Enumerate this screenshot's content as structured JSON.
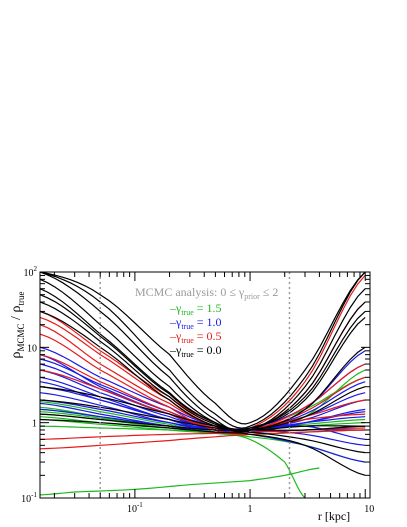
{
  "chart_data": {
    "type": "line",
    "xscale": "log",
    "yscale": "log",
    "xlim": [
      0.015,
      11
    ],
    "ylim": [
      0.1,
      100
    ],
    "x_ticks": [
      {
        "value": 0.1,
        "base": "10",
        "exp": "-1"
      },
      {
        "value": 1,
        "base": "1",
        "exp": ""
      },
      {
        "value": 10,
        "base": "10",
        "exp": ""
      }
    ],
    "y_ticks": [
      {
        "value": 0.1,
        "base": "10",
        "exp": "-1"
      },
      {
        "value": 1,
        "base": "1",
        "exp": ""
      },
      {
        "value": 10,
        "base": "10",
        "exp": ""
      },
      {
        "value": 100,
        "base": "10",
        "exp": "2"
      }
    ],
    "xlabel": "r  [kpc]",
    "ylabel": {
      "prefix": "ρ",
      "sub1": "MCMC",
      "mid": " / ρ",
      "sub2": "true"
    },
    "annotation": {
      "text": "MCMC analysis: 0 ≤ γ",
      "sub": "prior",
      "tail": " ≤ 2"
    },
    "vlines": [
      0.05,
      2.2
    ],
    "legend": [
      {
        "label": "γ",
        "sub": "true",
        "value": " = 1.5",
        "color": "#1fb81f"
      },
      {
        "label": "γ",
        "sub": "true",
        "value": " = 1.0",
        "color": "#1a1ae6"
      },
      {
        "label": "γ",
        "sub": "true",
        "value": " = 0.5",
        "color": "#e61a1a"
      },
      {
        "label": "γ",
        "sub": "true",
        "value": " = 0.0",
        "color": "#000000"
      }
    ],
    "series": [
      {
        "gamma": 1.5,
        "color": "#1fb81f",
        "curves": [
          {
            "x": [
              0.015,
              0.05,
              0.2,
              0.5,
              1,
              3,
              10
            ],
            "y": [
              1.6,
              1.2,
              0.9,
              0.8,
              0.8,
              0.9,
              1.0
            ]
          },
          {
            "x": [
              0.015,
              0.05,
              0.2,
              0.5,
              1,
              3,
              10
            ],
            "y": [
              1.3,
              1.1,
              0.85,
              0.75,
              0.75,
              0.8,
              0.9
            ]
          },
          {
            "x": [
              0.015,
              0.05,
              0.2,
              0.5,
              1,
              3,
              10
            ],
            "y": [
              1.9,
              1.4,
              0.95,
              0.75,
              0.7,
              0.75,
              0.8
            ]
          },
          {
            "x": [
              0.015,
              0.05,
              0.2,
              0.5,
              1,
              3,
              10
            ],
            "y": [
              0.9,
              0.85,
              0.8,
              0.75,
              0.8,
              0.95,
              1.1
            ]
          },
          {
            "x": [
              0.015,
              0.05,
              0.2,
              0.5,
              1,
              3,
              10
            ],
            "y": [
              1.2,
              1.0,
              0.85,
              0.8,
              0.8,
              1.2,
              5.0
            ]
          },
          {
            "x": [
              0.015,
              0.05,
              0.2,
              0.5,
              1,
              3,
              10
            ],
            "y": [
              1.1,
              0.95,
              0.8,
              0.72,
              0.65,
              0.5,
              0.3
            ]
          },
          {
            "x": [
              0.015,
              0.03,
              0.1,
              0.3,
              1,
              2,
              4
            ],
            "y": [
              0.11,
              0.12,
              0.13,
              0.15,
              0.17,
              0.2,
              0.25
            ]
          },
          {
            "x": [
              0.015,
              0.05,
              0.2,
              0.5,
              1,
              2,
              3
            ],
            "y": [
              1.5,
              1.2,
              0.9,
              0.75,
              0.6,
              0.3,
              0.1
            ]
          },
          {
            "x": [
              0.015,
              0.05,
              0.2,
              0.5,
              1,
              3,
              10
            ],
            "y": [
              1.4,
              1.15,
              0.9,
              0.8,
              0.85,
              1.5,
              4.0
            ]
          }
        ]
      },
      {
        "gamma": 1.0,
        "color": "#1a1ae6",
        "curves": [
          {
            "x": [
              0.015,
              0.05,
              0.2,
              0.5,
              1,
              3,
              10
            ],
            "y": [
              8,
              3,
              1.3,
              0.8,
              0.75,
              1.0,
              1.4
            ]
          },
          {
            "x": [
              0.015,
              0.05,
              0.2,
              0.5,
              1,
              3,
              10
            ],
            "y": [
              5,
              2.5,
              1.2,
              0.85,
              0.8,
              1.1,
              2.0
            ]
          },
          {
            "x": [
              0.015,
              0.05,
              0.2,
              0.5,
              1,
              3,
              10
            ],
            "y": [
              3,
              2.0,
              1.1,
              0.8,
              0.8,
              1.3,
              3.5
            ]
          },
          {
            "x": [
              0.015,
              0.05,
              0.2,
              0.5,
              1,
              3,
              10
            ],
            "y": [
              2.5,
              1.7,
              1.0,
              0.8,
              0.8,
              1.0,
              1.2
            ]
          },
          {
            "x": [
              0.015,
              0.05,
              0.2,
              0.5,
              1,
              3,
              10
            ],
            "y": [
              6,
              2.8,
              1.3,
              0.9,
              0.85,
              1.6,
              6.0
            ]
          },
          {
            "x": [
              0.015,
              0.05,
              0.2,
              0.5,
              1,
              3,
              10
            ],
            "y": [
              4,
              2.2,
              1.1,
              0.8,
              0.75,
              0.8,
              0.8
            ]
          },
          {
            "x": [
              0.015,
              0.05,
              0.2,
              0.5,
              1,
              3,
              10
            ],
            "y": [
              2,
              1.5,
              1.0,
              0.85,
              0.85,
              1.2,
              2.5
            ]
          },
          {
            "x": [
              0.015,
              0.05,
              0.2,
              0.5,
              1,
              3,
              10
            ],
            "y": [
              1.5,
              1.2,
              0.9,
              0.8,
              0.8,
              0.7,
              0.5
            ]
          },
          {
            "x": [
              0.015,
              0.05,
              0.2,
              0.5,
              1,
              3,
              10
            ],
            "y": [
              10,
              4,
              1.6,
              0.9,
              0.8,
              1.5,
              9.0
            ]
          },
          {
            "x": [
              0.015,
              0.05,
              0.2,
              0.5,
              1,
              3,
              10
            ],
            "y": [
              3.5,
              2.0,
              1.1,
              0.8,
              0.7,
              0.5,
              0.3
            ]
          },
          {
            "x": [
              0.015,
              0.05,
              0.2,
              0.5,
              1,
              3,
              10
            ],
            "y": [
              7,
              3.2,
              1.4,
              0.9,
              0.8,
              0.9,
              0.6
            ]
          },
          {
            "x": [
              0.015,
              0.05,
              0.2,
              0.5,
              1,
              3,
              10
            ],
            "y": [
              1.8,
              1.3,
              0.9,
              0.75,
              0.75,
              1.0,
              1.5
            ]
          }
        ]
      },
      {
        "gamma": 0.5,
        "color": "#e61a1a",
        "curves": [
          {
            "x": [
              0.015,
              0.05,
              0.2,
              0.5,
              1,
              3,
              10
            ],
            "y": [
              20,
              6,
              1.8,
              0.9,
              0.8,
              1.2,
              2.0
            ]
          },
          {
            "x": [
              0.015,
              0.05,
              0.2,
              0.5,
              1,
              3,
              10
            ],
            "y": [
              15,
              5,
              1.6,
              0.8,
              0.8,
              2.5,
              40
            ]
          },
          {
            "x": [
              0.015,
              0.05,
              0.2,
              0.5,
              1,
              3,
              10
            ],
            "y": [
              8,
              3.5,
              1.4,
              0.85,
              0.8,
              1.1,
              1.3
            ]
          },
          {
            "x": [
              0.015,
              0.05,
              0.2,
              0.5,
              1,
              3,
              10
            ],
            "y": [
              0.6,
              0.65,
              0.7,
              0.72,
              0.75,
              0.8,
              0.85
            ]
          },
          {
            "x": [
              0.015,
              0.05,
              0.2,
              0.5,
              1,
              3,
              10
            ],
            "y": [
              0.45,
              0.5,
              0.58,
              0.65,
              0.7,
              0.75,
              0.8
            ]
          },
          {
            "x": [
              0.015,
              0.05,
              0.2,
              0.5,
              1,
              3,
              10
            ],
            "y": [
              30,
              9,
              2.2,
              1.0,
              0.85,
              3.5,
              90
            ]
          },
          {
            "x": [
              0.015,
              0.05,
              0.2,
              0.5,
              1,
              3,
              10
            ],
            "y": [
              5,
              2.8,
              1.3,
              0.85,
              0.8,
              1.4,
              4.0
            ]
          },
          {
            "x": [
              0.015,
              0.05,
              0.2,
              0.5,
              1,
              3,
              10
            ],
            "y": [
              25,
              8,
              2.0,
              0.9,
              0.8,
              1.6,
              6.0
            ]
          }
        ]
      },
      {
        "gamma": 0.0,
        "color": "#000000",
        "curves": [
          {
            "x": [
              0.015,
              0.05,
              0.2,
              0.5,
              1,
              3,
              10
            ],
            "y": [
              100,
              30,
              4,
              1.1,
              0.8,
              3.0,
              60
            ]
          },
          {
            "x": [
              0.015,
              0.05,
              0.2,
              0.5,
              1,
              3,
              10
            ],
            "y": [
              80,
              20,
              3,
              1.0,
              0.8,
              2.5,
              40
            ]
          },
          {
            "x": [
              0.015,
              0.05,
              0.2,
              0.5,
              1,
              3,
              10
            ],
            "y": [
              60,
              15,
              2.5,
              1.0,
              0.85,
              2.0,
              25
            ]
          },
          {
            "x": [
              0.015,
              0.05,
              0.2,
              0.5,
              1,
              3,
              10
            ],
            "y": [
              100,
              40,
              5,
              1.3,
              0.9,
              4.0,
              100
            ]
          },
          {
            "x": [
              0.015,
              0.05,
              0.2,
              0.5,
              1,
              3,
              10
            ],
            "y": [
              40,
              12,
              2.2,
              0.95,
              0.8,
              1.5,
              10
            ]
          },
          {
            "x": [
              0.015,
              0.05,
              0.2,
              0.5,
              1,
              3,
              10
            ],
            "y": [
              3,
              2.2,
              1.3,
              0.9,
              0.8,
              0.9,
              0.9
            ]
          },
          {
            "x": [
              0.015,
              0.05,
              0.2,
              0.5,
              1,
              3,
              10
            ],
            "y": [
              2,
              1.6,
              1.1,
              0.85,
              0.75,
              0.6,
              0.4
            ]
          },
          {
            "x": [
              0.015,
              0.05,
              0.2,
              0.5,
              1,
              3,
              10
            ],
            "y": [
              1.3,
              1.1,
              0.9,
              0.8,
              0.8,
              0.8,
              0.9
            ]
          },
          {
            "x": [
              0.015,
              0.05,
              0.2,
              0.5,
              1,
              3,
              10
            ],
            "y": [
              100,
              50,
              8,
              1.8,
              1.0,
              5.0,
              100
            ]
          },
          {
            "x": [
              0.015,
              0.05,
              0.2,
              0.5,
              1,
              3,
              10
            ],
            "y": [
              30,
              10,
              2.0,
              0.9,
              0.8,
              1.2,
              3.0
            ]
          },
          {
            "x": [
              0.015,
              0.05,
              0.2,
              0.5,
              1,
              3,
              10
            ],
            "y": [
              1.1,
              1.0,
              0.85,
              0.75,
              0.7,
              0.5,
              0.2
            ]
          },
          {
            "x": [
              0.015,
              0.05,
              0.2,
              0.5,
              1,
              3,
              10
            ],
            "y": [
              50,
              14,
              2.4,
              1.0,
              0.85,
              2.2,
              30
            ]
          }
        ]
      }
    ]
  }
}
